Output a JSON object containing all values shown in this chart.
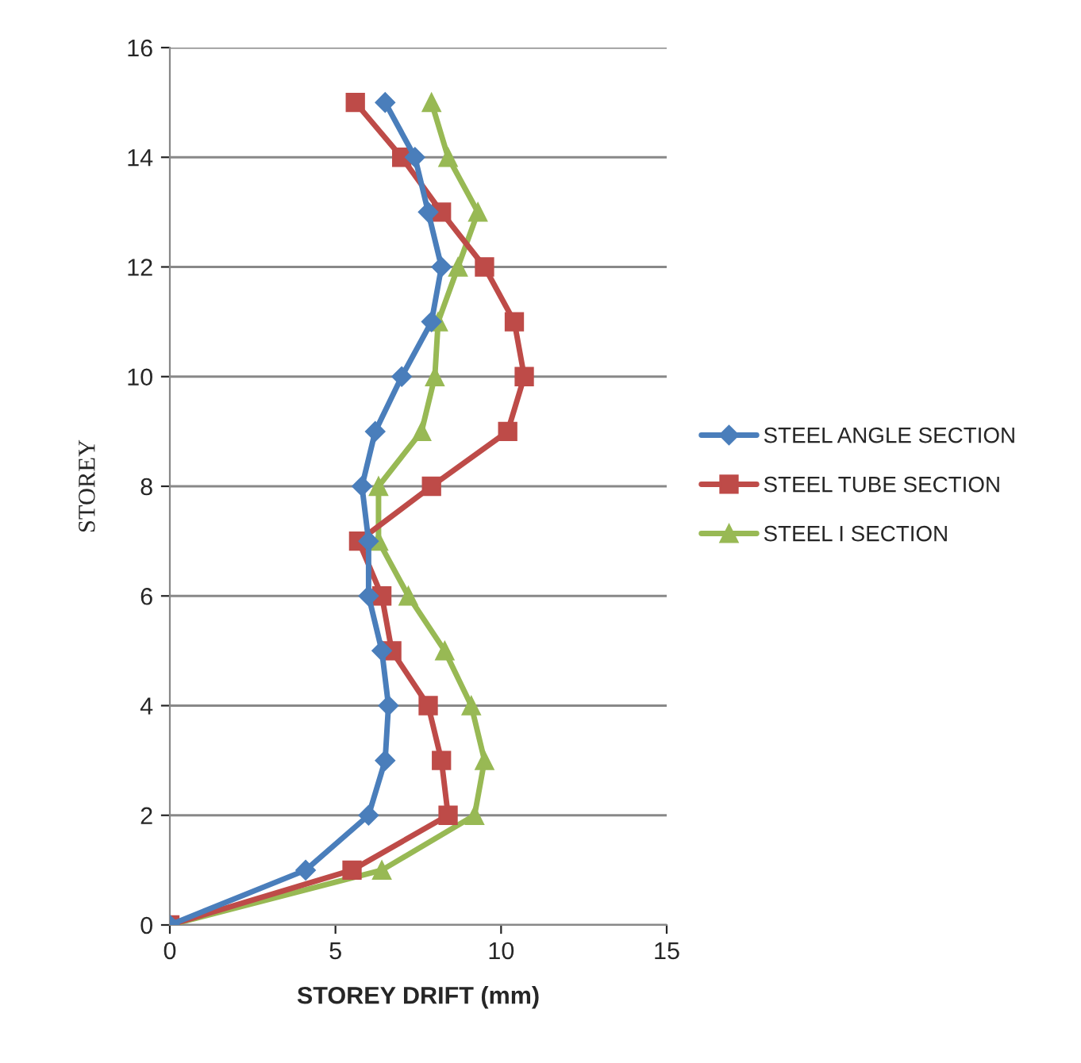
{
  "chart_data": {
    "type": "line",
    "xlabel": "STOREY DRIFT (mm)",
    "ylabel": "STOREY",
    "xlim": [
      0,
      15
    ],
    "xticks": [
      0,
      5,
      10,
      15
    ],
    "ylim": [
      0,
      16
    ],
    "yticks": [
      0,
      2,
      4,
      6,
      8,
      10,
      12,
      14,
      16
    ],
    "grid": "y",
    "legend": "right",
    "series": [
      {
        "name": "STEEL ANGLE SECTION",
        "color": "#4a7ebb",
        "marker": "diamond",
        "x": [
          0,
          4.1,
          6.0,
          6.5,
          6.6,
          6.4,
          6.0,
          6.0,
          5.8,
          6.2,
          7.0,
          7.9,
          8.2,
          7.8,
          7.4,
          6.5
        ],
        "values": [
          0,
          1,
          2,
          3,
          4,
          5,
          6,
          7,
          8,
          9,
          10,
          11,
          12,
          13,
          14,
          15
        ]
      },
      {
        "name": "STEEL TUBE SECTION",
        "color": "#be4b48",
        "marker": "square",
        "x": [
          0,
          5.5,
          8.4,
          8.2,
          7.8,
          6.7,
          6.4,
          5.7,
          7.9,
          10.2,
          10.7,
          10.4,
          9.5,
          8.2,
          7.0,
          5.6
        ],
        "values": [
          0,
          1,
          2,
          3,
          4,
          5,
          6,
          7,
          8,
          9,
          10,
          11,
          12,
          13,
          14,
          15
        ]
      },
      {
        "name": "STEEL I SECTION",
        "color": "#98b954",
        "marker": "triangle",
        "x": [
          0,
          6.4,
          9.2,
          9.5,
          9.1,
          8.3,
          7.2,
          6.3,
          6.3,
          7.6,
          8.0,
          8.1,
          8.7,
          9.3,
          8.4,
          7.9
        ],
        "values": [
          0,
          1,
          2,
          3,
          4,
          5,
          6,
          7,
          8,
          9,
          10,
          11,
          12,
          13,
          14,
          15
        ]
      }
    ]
  }
}
